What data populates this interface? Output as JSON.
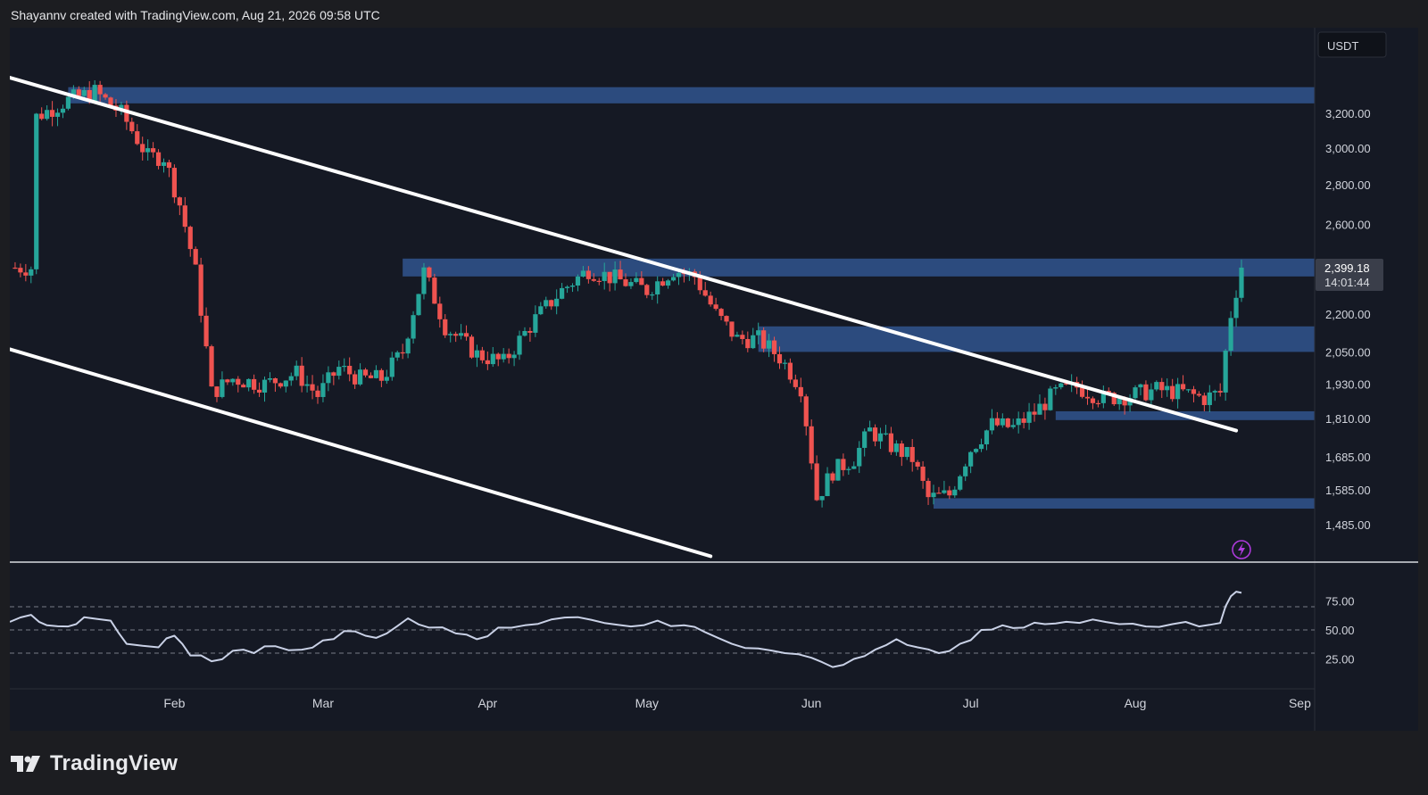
{
  "header": {
    "attribution": "Shayannv created with TradingView.com, Aug 21, 2026 09:58 UTC"
  },
  "footer": {
    "brand": "TradingView"
  },
  "colors": {
    "background": "#151924",
    "up": "#26a69a",
    "down": "#ef5350",
    "zone": "#2f4f87",
    "trendline": "#ffffff",
    "rsi": "#c9d1e6"
  },
  "chart_data": {
    "type": "candlestick",
    "symbol_currency": "USDT",
    "price_ticks": [
      "3,200.00",
      "3,000.00",
      "2,800.00",
      "2,600.00",
      "2,200.00",
      "2,050.00",
      "1,930.00",
      "1,810.00",
      "1,685.00",
      "1,585.00",
      "1,485.00"
    ],
    "last_price": {
      "value": "2,399.18",
      "countdown": "14:01:44"
    },
    "x_labels": [
      "Feb",
      "Mar",
      "Apr",
      "May",
      "Jun",
      "Jul",
      "Aug",
      "Sep"
    ],
    "ohlc_keypoints": [
      [
        "Jan 6",
        3180
      ],
      [
        "Jan 12",
        3280
      ],
      [
        "Jan 17",
        3330
      ],
      [
        "Jan 22",
        3200
      ],
      [
        "Jan 27",
        2950
      ],
      [
        "Jan 30",
        2950
      ],
      [
        "Feb 2",
        2700
      ],
      [
        "Feb 5",
        2380
      ],
      [
        "Feb 8",
        1900
      ],
      [
        "Feb 12",
        1950
      ],
      [
        "Feb 18",
        1930
      ],
      [
        "Feb 24",
        1970
      ],
      [
        "Feb 28",
        1890
      ],
      [
        "Mar 4",
        1990
      ],
      [
        "Mar 8",
        1950
      ],
      [
        "Mar 12",
        1950
      ],
      [
        "Mar 16",
        2050
      ],
      [
        "Mar 20",
        2380
      ],
      [
        "Mar 24",
        2150
      ],
      [
        "Mar 30",
        2040
      ],
      [
        "Apr 4",
        2010
      ],
      [
        "Apr 10",
        2180
      ],
      [
        "Apr 15",
        2300
      ],
      [
        "Apr 20",
        2390
      ],
      [
        "Apr 25",
        2350
      ],
      [
        "May 1",
        2300
      ],
      [
        "May 6",
        2390
      ],
      [
        "May 10",
        2360
      ],
      [
        "May 14",
        2200
      ],
      [
        "May 18",
        2100
      ],
      [
        "May 22",
        2100
      ],
      [
        "May 26",
        2030
      ],
      [
        "May 30",
        1920
      ],
      [
        "Jun 2",
        1560
      ],
      [
        "Jun 5",
        1640
      ],
      [
        "Jun 9",
        1680
      ],
      [
        "Jun 12",
        1770
      ],
      [
        "Jun 16",
        1720
      ],
      [
        "Jun 20",
        1680
      ],
      [
        "Jun 23",
        1560
      ],
      [
        "Jun 27",
        1570
      ],
      [
        "Jul 1",
        1710
      ],
      [
        "Jul 5",
        1790
      ],
      [
        "Jul 9",
        1780
      ],
      [
        "Jul 13",
        1830
      ],
      [
        "Jul 17",
        1900
      ],
      [
        "Jul 21",
        1920
      ],
      [
        "Jul 26",
        1880
      ],
      [
        "Jul 31",
        1890
      ],
      [
        "Aug 5",
        1910
      ],
      [
        "Aug 10",
        1900
      ],
      [
        "Aug 14",
        1880
      ],
      [
        "Aug 17",
        1900
      ],
      [
        "Aug 19",
        2200
      ],
      [
        "Aug 20",
        2300
      ],
      [
        "Aug 21",
        2399.18
      ]
    ],
    "zones": [
      {
        "name": "zone-3300",
        "from": 3260,
        "to": 3360
      },
      {
        "name": "zone-2400",
        "from": 2360,
        "to": 2440
      },
      {
        "name": "zone-2100",
        "from": 2050,
        "to": 2150
      },
      {
        "name": "zone-1820",
        "from": 1805,
        "to": 1835
      },
      {
        "name": "zone-1550",
        "from": 1530,
        "to": 1560
      }
    ],
    "trendlines": [
      {
        "name": "upper-channel-line",
        "points": [
          [
            "Jan 1",
            3420
          ],
          [
            "Aug 20",
            1770
          ]
        ]
      },
      {
        "name": "lower-channel-line",
        "points": [
          [
            "Jan 1",
            2060
          ],
          [
            "May 13",
            1400
          ]
        ]
      }
    ],
    "rsi": {
      "levels": [
        70,
        50,
        30
      ],
      "ticks": [
        "75.00",
        "50.00",
        "25.00"
      ],
      "keypoints": [
        [
          "Jan 1",
          57
        ],
        [
          "Jan 5",
          63
        ],
        [
          "Jan 8",
          54
        ],
        [
          "Jan 12",
          53
        ],
        [
          "Jan 15",
          61
        ],
        [
          "Jan 20",
          58
        ],
        [
          "Jan 23",
          38
        ],
        [
          "Jan 29",
          35
        ],
        [
          "Feb 1",
          45
        ],
        [
          "Feb 4",
          28
        ],
        [
          "Feb 8",
          23
        ],
        [
          "Feb 12",
          32
        ],
        [
          "Feb 16",
          30
        ],
        [
          "Feb 20",
          36
        ],
        [
          "Feb 25",
          33
        ],
        [
          "Mar 1",
          41
        ],
        [
          "Mar 5",
          49
        ],
        [
          "Mar 9",
          45
        ],
        [
          "Mar 13",
          47
        ],
        [
          "Mar 17",
          60
        ],
        [
          "Mar 21",
          52
        ],
        [
          "Mar 26",
          47
        ],
        [
          "Mar 30",
          42
        ],
        [
          "Apr 3",
          52
        ],
        [
          "Apr 8",
          54
        ],
        [
          "Apr 13",
          59
        ],
        [
          "Apr 18",
          61
        ],
        [
          "Apr 23",
          56
        ],
        [
          "Apr 28",
          53
        ],
        [
          "May 3",
          58
        ],
        [
          "May 8",
          54
        ],
        [
          "May 12",
          48
        ],
        [
          "May 17",
          38
        ],
        [
          "May 22",
          34
        ],
        [
          "May 27",
          30
        ],
        [
          "Jun 1",
          26
        ],
        [
          "Jun 5",
          18
        ],
        [
          "Jun 9",
          25
        ],
        [
          "Jun 13",
          33
        ],
        [
          "Jun 17",
          42
        ],
        [
          "Jun 21",
          35
        ],
        [
          "Jun 25",
          30
        ],
        [
          "Jun 29",
          38
        ],
        [
          "Jul 3",
          50
        ],
        [
          "Jul 7",
          54
        ],
        [
          "Jul 11",
          52
        ],
        [
          "Jul 15",
          55
        ],
        [
          "Jul 19",
          57
        ],
        [
          "Jul 24",
          59
        ],
        [
          "Jul 29",
          55
        ],
        [
          "Aug 3",
          53
        ],
        [
          "Aug 8",
          55
        ],
        [
          "Aug 13",
          53
        ],
        [
          "Aug 17",
          56
        ],
        [
          "Aug 19",
          79
        ],
        [
          "Aug 21",
          82
        ]
      ]
    }
  }
}
